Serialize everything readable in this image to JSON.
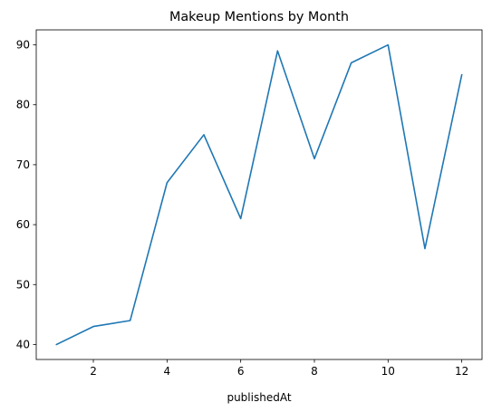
{
  "chart_data": {
    "type": "line",
    "title": "Makeup Mentions by Month",
    "xlabel": "publishedAt",
    "ylabel": "",
    "x": [
      1,
      2,
      3,
      4,
      5,
      6,
      7,
      8,
      9,
      10,
      11,
      12
    ],
    "series": [
      {
        "values": [
          40,
          43,
          44,
          67,
          75,
          61,
          89,
          71,
          87,
          90,
          56,
          85
        ],
        "color": "#1f77b4"
      }
    ],
    "xlim": [
      0.45,
      12.55
    ],
    "ylim": [
      37.5,
      92.5
    ],
    "xticks": [
      2,
      4,
      6,
      8,
      10,
      12
    ],
    "xtick_labels": [
      "2",
      "4",
      "6",
      "8",
      "10",
      "12"
    ],
    "yticks": [
      40,
      50,
      60,
      70,
      80,
      90
    ],
    "ytick_labels": [
      "40",
      "50",
      "60",
      "70",
      "80",
      "90"
    ],
    "grid": false,
    "legend": false
  }
}
